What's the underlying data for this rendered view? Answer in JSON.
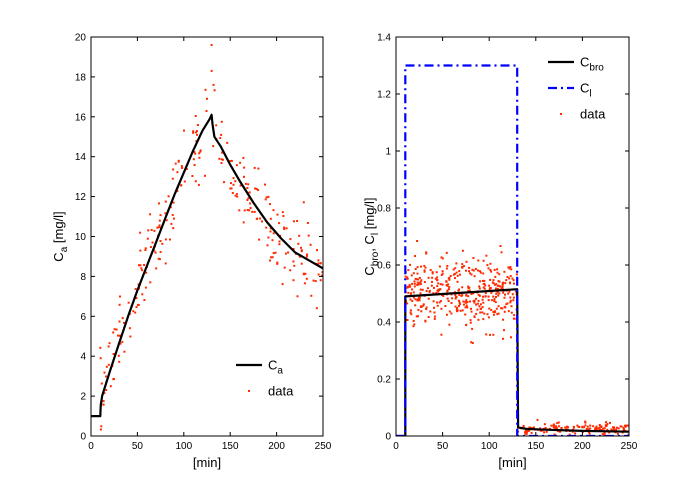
{
  "chart_data": [
    {
      "type": "line",
      "xlabel": "[min]",
      "ylabel": "C",
      "ylabel_sub": "a",
      "ylabel_unit": " [mg/l]",
      "xlim": [
        0,
        250
      ],
      "ylim": [
        0,
        20
      ],
      "xticks": [
        0,
        50,
        100,
        150,
        200,
        250
      ],
      "yticks": [
        0,
        2,
        4,
        6,
        8,
        10,
        12,
        14,
        16,
        18,
        20
      ],
      "grid": false,
      "legend_position": "bottom-right",
      "series": [
        {
          "name": "C",
          "name_sub": "a",
          "kind": "line",
          "color": "#000000",
          "style": "solid",
          "x": [
            0,
            10,
            10.5,
            12,
            20,
            30,
            40,
            50,
            60,
            70,
            80,
            90,
            100,
            110,
            120,
            128,
            130,
            131,
            133,
            140,
            150,
            160,
            175,
            190,
            205,
            220,
            235,
            250
          ],
          "y": [
            1,
            1,
            1.5,
            2.0,
            3.2,
            4.6,
            6.0,
            7.3,
            8.5,
            9.7,
            10.9,
            12.1,
            13.2,
            14.3,
            15.3,
            15.9,
            16.1,
            15.6,
            15.0,
            14.5,
            13.6,
            12.8,
            11.7,
            10.7,
            9.9,
            9.2,
            8.8,
            8.4
          ]
        },
        {
          "name": "data",
          "kind": "scatter",
          "color": "#ff2a00",
          "trend_x": [
            10,
            20,
            30,
            40,
            50,
            60,
            70,
            80,
            90,
            100,
            110,
            120,
            130,
            140,
            150,
            160,
            175,
            190,
            205,
            220,
            235,
            250
          ],
          "trend_y": [
            1.8,
            3.2,
            4.6,
            6.0,
            7.3,
            8.5,
            9.7,
            10.9,
            12.1,
            13.2,
            14.3,
            15.3,
            16.0,
            14.5,
            13.6,
            12.8,
            11.7,
            10.7,
            9.9,
            9.2,
            8.8,
            8.4
          ],
          "x_range": [
            10,
            250
          ],
          "noise": 1.2,
          "count": 280,
          "notable_points": [
            [
              130,
              19.6
            ],
            [
              130,
              18.3
            ],
            [
              125,
              16.9
            ],
            [
              132,
              17.6
            ],
            [
              110,
              15.2
            ],
            [
              245,
              8.8
            ]
          ]
        }
      ]
    },
    {
      "type": "line",
      "xlabel": "[min]",
      "ylabel_parts": [
        "C",
        "bro",
        ", C",
        "l",
        " [mg/l]"
      ],
      "xlim": [
        0,
        250
      ],
      "ylim": [
        0,
        1.4
      ],
      "xticks": [
        0,
        50,
        100,
        150,
        200,
        250
      ],
      "yticks": [
        0,
        0.2,
        0.4,
        0.6,
        0.8,
        1,
        1.2,
        1.4
      ],
      "grid": false,
      "legend_position": "top-right",
      "series": [
        {
          "name": "C",
          "name_sub": "bro",
          "kind": "line",
          "color": "#000000",
          "style": "solid",
          "x": [
            0,
            10,
            10,
            130,
            130,
            131,
            140,
            160,
            200,
            250
          ],
          "y": [
            0,
            0,
            0.49,
            0.515,
            0.515,
            0.03,
            0.025,
            0.022,
            0.018,
            0.015
          ]
        },
        {
          "name": "C",
          "name_sub": "l",
          "kind": "line",
          "color": "#0000ff",
          "style": "dashdot",
          "x": [
            0,
            10,
            10,
            130,
            130,
            250
          ],
          "y": [
            0,
            0,
            1.3,
            1.3,
            0,
            0
          ]
        },
        {
          "name": "data",
          "kind": "scatter",
          "color": "#ff2a00",
          "segments": [
            {
              "x_range": [
                10,
                130
              ],
              "y_center": 0.5,
              "noise": 0.06,
              "count": 420
            },
            {
              "x_range": [
                130,
                250
              ],
              "y_center": 0.025,
              "noise": 0.01,
              "count": 150
            }
          ]
        }
      ]
    }
  ]
}
